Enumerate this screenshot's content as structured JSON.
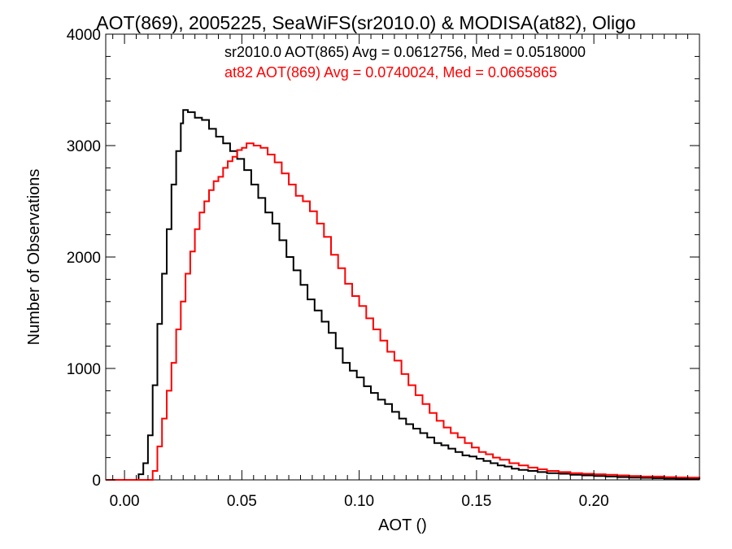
{
  "chart_data": {
    "type": "histogram",
    "title": "AOT(869), 2005225, SeaWiFS(sr2010.0) & MODISA(at82), Oligo",
    "xlabel": "AOT ()",
    "ylabel": "Number of Observations",
    "xlim": [
      -0.008,
      0.245
    ],
    "ylim": [
      0,
      4000
    ],
    "x_ticks": [
      0.0,
      0.05,
      0.1,
      0.15,
      0.2
    ],
    "x_tick_labels": [
      "0.00",
      "0.05",
      "0.10",
      "0.15",
      "0.20"
    ],
    "y_ticks": [
      0,
      1000,
      2000,
      3000,
      4000
    ],
    "y_tick_labels": [
      "0",
      "1000",
      "2000",
      "3000",
      "4000"
    ],
    "grid": false,
    "annotations": [
      {
        "text": "sr2010.0 AOT(865) Avg = 0.0612756, Med = 0.0518000",
        "color": "#000000"
      },
      {
        "text": "at82 AOT(869) Avg = 0.0740024, Med = 0.0665865",
        "color": "#ff0000"
      }
    ],
    "series": [
      {
        "name": "sr2010.0",
        "color": "#000000",
        "points": [
          [
            -0.008,
            0
          ],
          [
            0.003,
            0
          ],
          [
            0.006,
            50
          ],
          [
            0.008,
            150
          ],
          [
            0.01,
            400
          ],
          [
            0.012,
            850
          ],
          [
            0.014,
            1400
          ],
          [
            0.016,
            1850
          ],
          [
            0.018,
            2250
          ],
          [
            0.02,
            2650
          ],
          [
            0.022,
            2950
          ],
          [
            0.024,
            3200
          ],
          [
            0.025,
            3320
          ],
          [
            0.027,
            3300
          ],
          [
            0.03,
            3250
          ],
          [
            0.033,
            3230
          ],
          [
            0.036,
            3150
          ],
          [
            0.039,
            3080
          ],
          [
            0.042,
            3020
          ],
          [
            0.045,
            2950
          ],
          [
            0.048,
            2880
          ],
          [
            0.051,
            2780
          ],
          [
            0.054,
            2650
          ],
          [
            0.057,
            2530
          ],
          [
            0.06,
            2400
          ],
          [
            0.063,
            2300
          ],
          [
            0.066,
            2150
          ],
          [
            0.069,
            2000
          ],
          [
            0.072,
            1880
          ],
          [
            0.075,
            1750
          ],
          [
            0.078,
            1620
          ],
          [
            0.081,
            1520
          ],
          [
            0.084,
            1420
          ],
          [
            0.087,
            1320
          ],
          [
            0.09,
            1180
          ],
          [
            0.093,
            1050
          ],
          [
            0.096,
            980
          ],
          [
            0.099,
            920
          ],
          [
            0.102,
            840
          ],
          [
            0.105,
            780
          ],
          [
            0.108,
            720
          ],
          [
            0.111,
            680
          ],
          [
            0.114,
            610
          ],
          [
            0.117,
            550
          ],
          [
            0.12,
            500
          ],
          [
            0.123,
            460
          ],
          [
            0.126,
            420
          ],
          [
            0.129,
            380
          ],
          [
            0.132,
            330
          ],
          [
            0.135,
            310
          ],
          [
            0.138,
            280
          ],
          [
            0.141,
            250
          ],
          [
            0.144,
            220
          ],
          [
            0.147,
            210
          ],
          [
            0.15,
            190
          ],
          [
            0.153,
            170
          ],
          [
            0.156,
            150
          ],
          [
            0.159,
            130
          ],
          [
            0.162,
            120
          ],
          [
            0.165,
            100
          ],
          [
            0.168,
            90
          ],
          [
            0.172,
            80
          ],
          [
            0.176,
            70
          ],
          [
            0.18,
            60
          ],
          [
            0.185,
            55
          ],
          [
            0.19,
            45
          ],
          [
            0.195,
            40
          ],
          [
            0.2,
            35
          ],
          [
            0.205,
            30
          ],
          [
            0.21,
            25
          ],
          [
            0.215,
            20
          ],
          [
            0.22,
            18
          ],
          [
            0.225,
            15
          ],
          [
            0.23,
            12
          ],
          [
            0.235,
            10
          ],
          [
            0.24,
            8
          ],
          [
            0.245,
            6
          ]
        ]
      },
      {
        "name": "at82",
        "color": "#ff0000",
        "points": [
          [
            -0.008,
            0
          ],
          [
            0.01,
            0
          ],
          [
            0.012,
            80
          ],
          [
            0.014,
            300
          ],
          [
            0.016,
            550
          ],
          [
            0.018,
            800
          ],
          [
            0.02,
            1050
          ],
          [
            0.022,
            1350
          ],
          [
            0.024,
            1600
          ],
          [
            0.026,
            1850
          ],
          [
            0.028,
            2050
          ],
          [
            0.03,
            2250
          ],
          [
            0.032,
            2400
          ],
          [
            0.034,
            2500
          ],
          [
            0.036,
            2600
          ],
          [
            0.038,
            2680
          ],
          [
            0.04,
            2720
          ],
          [
            0.042,
            2800
          ],
          [
            0.044,
            2860
          ],
          [
            0.046,
            2900
          ],
          [
            0.048,
            2960
          ],
          [
            0.05,
            2980
          ],
          [
            0.052,
            3020
          ],
          [
            0.055,
            3000
          ],
          [
            0.058,
            2980
          ],
          [
            0.061,
            2920
          ],
          [
            0.064,
            2850
          ],
          [
            0.067,
            2750
          ],
          [
            0.07,
            2650
          ],
          [
            0.073,
            2550
          ],
          [
            0.076,
            2500
          ],
          [
            0.079,
            2410
          ],
          [
            0.082,
            2300
          ],
          [
            0.085,
            2180
          ],
          [
            0.088,
            2020
          ],
          [
            0.091,
            1900
          ],
          [
            0.094,
            1760
          ],
          [
            0.097,
            1650
          ],
          [
            0.1,
            1560
          ],
          [
            0.103,
            1450
          ],
          [
            0.106,
            1350
          ],
          [
            0.109,
            1250
          ],
          [
            0.112,
            1150
          ],
          [
            0.115,
            1070
          ],
          [
            0.118,
            950
          ],
          [
            0.121,
            850
          ],
          [
            0.124,
            760
          ],
          [
            0.127,
            680
          ],
          [
            0.13,
            600
          ],
          [
            0.133,
            530
          ],
          [
            0.136,
            470
          ],
          [
            0.139,
            420
          ],
          [
            0.142,
            380
          ],
          [
            0.145,
            330
          ],
          [
            0.148,
            290
          ],
          [
            0.151,
            250
          ],
          [
            0.154,
            230
          ],
          [
            0.157,
            200
          ],
          [
            0.16,
            180
          ],
          [
            0.164,
            150
          ],
          [
            0.168,
            130
          ],
          [
            0.172,
            110
          ],
          [
            0.176,
            95
          ],
          [
            0.18,
            80
          ],
          [
            0.185,
            70
          ],
          [
            0.19,
            60
          ],
          [
            0.195,
            55
          ],
          [
            0.2,
            50
          ],
          [
            0.205,
            45
          ],
          [
            0.21,
            40
          ],
          [
            0.215,
            35
          ],
          [
            0.22,
            30
          ],
          [
            0.225,
            30
          ],
          [
            0.23,
            25
          ],
          [
            0.235,
            22
          ],
          [
            0.24,
            20
          ],
          [
            0.245,
            18
          ]
        ]
      }
    ]
  }
}
